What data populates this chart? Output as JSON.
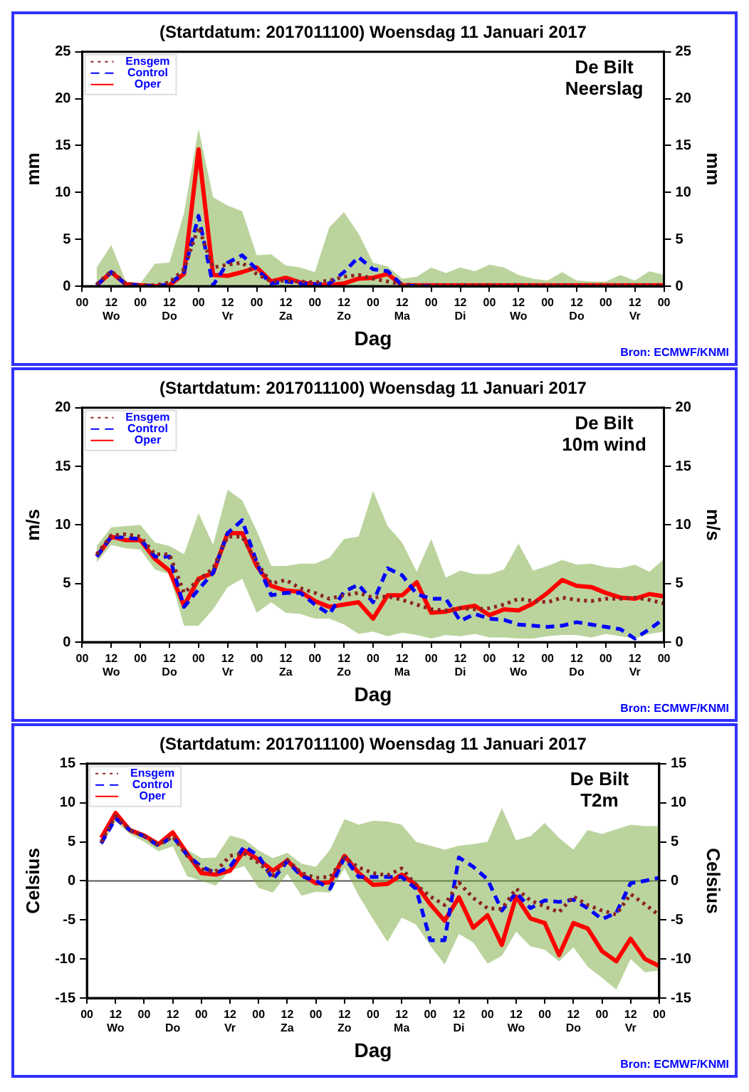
{
  "chart_data": [
    {
      "type": "line",
      "title": "(Startdatum: 2017011100) Woensdag 11 Januari 2017",
      "xlabel": "Dag",
      "ylabel": "mm",
      "y2label": "mm",
      "annotations": [
        "De Bilt",
        "Neerslag",
        "Bron: ECMWF/KNMI"
      ],
      "x": [
        "2017-01-11T06:00",
        "2017-01-11T12:00",
        "2017-01-11T18:00",
        "2017-01-12T00:00",
        "2017-01-12T06:00",
        "2017-01-12T12:00",
        "2017-01-12T18:00",
        "2017-01-13T00:00",
        "2017-01-13T06:00",
        "2017-01-13T12:00",
        "2017-01-13T18:00",
        "2017-01-14T00:00",
        "2017-01-14T06:00",
        "2017-01-14T12:00",
        "2017-01-14T18:00",
        "2017-01-15T00:00",
        "2017-01-15T06:00",
        "2017-01-15T12:00",
        "2017-01-15T18:00",
        "2017-01-16T00:00",
        "2017-01-16T06:00",
        "2017-01-16T12:00",
        "2017-01-16T18:00",
        "2017-01-17T00:00",
        "2017-01-17T06:00",
        "2017-01-17T12:00",
        "2017-01-17T18:00",
        "2017-01-18T00:00",
        "2017-01-18T06:00",
        "2017-01-18T12:00",
        "2017-01-18T18:00",
        "2017-01-19T00:00",
        "2017-01-19T06:00",
        "2017-01-19T12:00",
        "2017-01-19T18:00",
        "2017-01-20T00:00",
        "2017-01-20T06:00",
        "2017-01-20T12:00",
        "2017-01-20T18:00",
        "2017-01-21T00:00"
      ],
      "xlim": [
        "2017-01-11T00:00",
        "2017-01-21T00:00"
      ],
      "xticks": [
        {
          "value": "2017-01-11T00:00",
          "label": "00"
        },
        {
          "value": "2017-01-11T12:00",
          "label": "12\nWo"
        },
        {
          "value": "2017-01-12T00:00",
          "label": "00"
        },
        {
          "value": "2017-01-12T12:00",
          "label": "12\nDo"
        },
        {
          "value": "2017-01-13T00:00",
          "label": "00"
        },
        {
          "value": "2017-01-13T12:00",
          "label": "12\nVr"
        },
        {
          "value": "2017-01-14T00:00",
          "label": "00"
        },
        {
          "value": "2017-01-14T12:00",
          "label": "12\nZa"
        },
        {
          "value": "2017-01-15T00:00",
          "label": "00"
        },
        {
          "value": "2017-01-15T12:00",
          "label": "12\nZo"
        },
        {
          "value": "2017-01-16T00:00",
          "label": "00"
        },
        {
          "value": "2017-01-16T12:00",
          "label": "12\nMa"
        },
        {
          "value": "2017-01-17T00:00",
          "label": "00"
        },
        {
          "value": "2017-01-17T12:00",
          "label": "12\nDi"
        },
        {
          "value": "2017-01-18T00:00",
          "label": "00"
        },
        {
          "value": "2017-01-18T12:00",
          "label": "12\nWo"
        },
        {
          "value": "2017-01-19T00:00",
          "label": "00"
        },
        {
          "value": "2017-01-19T12:00",
          "label": "12\nDo"
        },
        {
          "value": "2017-01-20T00:00",
          "label": "00"
        },
        {
          "value": "2017-01-20T12:00",
          "label": "12\nVr"
        },
        {
          "value": "2017-01-21T00:00",
          "label": "00"
        }
      ],
      "ylim": [
        0,
        25
      ],
      "yticks": [
        0,
        5,
        10,
        15,
        20,
        25
      ],
      "y2lim": [
        0,
        25
      ],
      "y2ticks": [
        0,
        5,
        10,
        15,
        20,
        25
      ],
      "legend": "top left",
      "series": [
        {
          "name": "Ensgem",
          "color": "#8b2323",
          "line_style": "dotted",
          "values": [
            0.2,
            1.6,
            0.3,
            0.1,
            0.1,
            0.4,
            1.8,
            6.3,
            2.0,
            2.3,
            2.5,
            1.3,
            0.5,
            0.6,
            0.5,
            0.4,
            0.6,
            1.0,
            1.2,
            0.8,
            0.5,
            0.2,
            0.1,
            0.1,
            0.1,
            0.1,
            0.1,
            0.1,
            0.1,
            0.1,
            0.1,
            0.1,
            0.1,
            0.1,
            0.1,
            0.1,
            0.1,
            0.1,
            0.1,
            0.1
          ],
          "lower": [
            0,
            0,
            0,
            0,
            0,
            0,
            0,
            0,
            0,
            0,
            0,
            0,
            0,
            0,
            0,
            0,
            0,
            0,
            0,
            0,
            0,
            0,
            0,
            0,
            0,
            0,
            0,
            0,
            0,
            0,
            0,
            0,
            0,
            0,
            0,
            0,
            0,
            0,
            0,
            0
          ],
          "upper": [
            2,
            4.4,
            0.5,
            0.3,
            2.4,
            2.5,
            7.8,
            16.8,
            9.5,
            8.6,
            8.0,
            3.3,
            3.4,
            2.2,
            2.0,
            1.5,
            6.3,
            7.9,
            5.6,
            2.5,
            2.1,
            0.8,
            1.0,
            2.0,
            1.4,
            2.0,
            1.6,
            2.3,
            2.0,
            1.2,
            0.8,
            0.6,
            1.5,
            0.6,
            0.5,
            0.5,
            1.2,
            0.6,
            1.6,
            1.2
          ]
        },
        {
          "name": "Control",
          "color": "#0000ff",
          "line_style": "dashed",
          "values": [
            0.1,
            1.5,
            0.2,
            0.1,
            0,
            0.2,
            1.5,
            7.5,
            0.1,
            2.5,
            3.3,
            1.8,
            0.3,
            0.5,
            0.3,
            0.2,
            0.3,
            1.5,
            3.1,
            1.8,
            1.6,
            0.1,
            0,
            0,
            null,
            null,
            null,
            null,
            null,
            null,
            null,
            null,
            null,
            null,
            null,
            null,
            null,
            null,
            null,
            null
          ]
        },
        {
          "name": "Oper",
          "color": "#ff0000",
          "line_style": "solid",
          "values": [
            0.1,
            1.5,
            0.2,
            0.1,
            0,
            0.1,
            1.3,
            14.6,
            1.2,
            1.1,
            1.5,
            2.0,
            0.5,
            0.9,
            0.4,
            0.2,
            0.1,
            0.3,
            0.8,
            0.9,
            1.3,
            0.1,
            0.1,
            0.1,
            0.1,
            0.1,
            0.1,
            0.1,
            0.1,
            0.1,
            0.1,
            0.1,
            0.1,
            0.1,
            0.1,
            0.1,
            0.1,
            0.1,
            0.1,
            0.1
          ]
        }
      ]
    },
    {
      "type": "line",
      "title": "(Startdatum: 2017011100) Woensdag 11 Januari 2017",
      "xlabel": "Dag",
      "ylabel": "m/s",
      "y2label": "m/s",
      "annotations": [
        "De Bilt",
        "10m wind",
        "Bron: ECMWF/KNMI"
      ],
      "x": [
        "2017-01-11T06:00",
        "2017-01-11T12:00",
        "2017-01-11T18:00",
        "2017-01-12T00:00",
        "2017-01-12T06:00",
        "2017-01-12T12:00",
        "2017-01-12T18:00",
        "2017-01-13T00:00",
        "2017-01-13T06:00",
        "2017-01-13T12:00",
        "2017-01-13T18:00",
        "2017-01-14T00:00",
        "2017-01-14T06:00",
        "2017-01-14T12:00",
        "2017-01-14T18:00",
        "2017-01-15T00:00",
        "2017-01-15T06:00",
        "2017-01-15T12:00",
        "2017-01-15T18:00",
        "2017-01-16T00:00",
        "2017-01-16T06:00",
        "2017-01-16T12:00",
        "2017-01-16T18:00",
        "2017-01-17T00:00",
        "2017-01-17T06:00",
        "2017-01-17T12:00",
        "2017-01-17T18:00",
        "2017-01-18T00:00",
        "2017-01-18T06:00",
        "2017-01-18T12:00",
        "2017-01-18T18:00",
        "2017-01-19T00:00",
        "2017-01-19T06:00",
        "2017-01-19T12:00",
        "2017-01-19T18:00",
        "2017-01-20T00:00",
        "2017-01-20T06:00",
        "2017-01-20T12:00",
        "2017-01-20T18:00",
        "2017-01-21T00:00"
      ],
      "xlim": [
        "2017-01-11T00:00",
        "2017-01-21T00:00"
      ],
      "xticks": [
        {
          "value": "2017-01-11T00:00",
          "label": "00"
        },
        {
          "value": "2017-01-11T12:00",
          "label": "12\nWo"
        },
        {
          "value": "2017-01-12T00:00",
          "label": "00"
        },
        {
          "value": "2017-01-12T12:00",
          "label": "12\nDo"
        },
        {
          "value": "2017-01-13T00:00",
          "label": "00"
        },
        {
          "value": "2017-01-13T12:00",
          "label": "12\nVr"
        },
        {
          "value": "2017-01-14T00:00",
          "label": "00"
        },
        {
          "value": "2017-01-14T12:00",
          "label": "12\nZa"
        },
        {
          "value": "2017-01-15T00:00",
          "label": "00"
        },
        {
          "value": "2017-01-15T12:00",
          "label": "12\nZo"
        },
        {
          "value": "2017-01-16T00:00",
          "label": "00"
        },
        {
          "value": "2017-01-16T12:00",
          "label": "12\nMa"
        },
        {
          "value": "2017-01-17T00:00",
          "label": "00"
        },
        {
          "value": "2017-01-17T12:00",
          "label": "12\nDi"
        },
        {
          "value": "2017-01-18T00:00",
          "label": "00"
        },
        {
          "value": "2017-01-18T12:00",
          "label": "12\nWo"
        },
        {
          "value": "2017-01-19T00:00",
          "label": "00"
        },
        {
          "value": "2017-01-19T12:00",
          "label": "12\nDo"
        },
        {
          "value": "2017-01-20T00:00",
          "label": "00"
        },
        {
          "value": "2017-01-20T12:00",
          "label": "12\nVr"
        },
        {
          "value": "2017-01-21T00:00",
          "label": "00"
        }
      ],
      "ylim": [
        0,
        20
      ],
      "yticks": [
        0,
        5,
        10,
        15,
        20
      ],
      "y2lim": [
        0,
        20
      ],
      "y2ticks": [
        0,
        5,
        10,
        15,
        20
      ],
      "legend": "top left",
      "series": [
        {
          "name": "Ensgem",
          "color": "#8b2323",
          "line_style": "dotted",
          "values": [
            7.5,
            9.1,
            9.2,
            9.0,
            7.5,
            7.5,
            4.2,
            5.3,
            6.3,
            9.0,
            9.0,
            6.8,
            5.0,
            5.3,
            4.6,
            4.2,
            3.7,
            4.0,
            4.2,
            3.8,
            3.9,
            3.6,
            3.2,
            2.8,
            2.7,
            2.9,
            2.8,
            2.9,
            3.2,
            3.7,
            3.5,
            3.4,
            3.8,
            3.6,
            3.5,
            3.7,
            3.7,
            3.8,
            3.6,
            3.3
          ],
          "lower": [
            6.8,
            8.3,
            8.0,
            7.9,
            6.2,
            5.8,
            1.4,
            1.4,
            2.8,
            4.7,
            5.4,
            2.5,
            3.4,
            2.5,
            2.4,
            2.0,
            2.0,
            1.5,
            0.7,
            0.9,
            0.5,
            0.8,
            0.6,
            0.3,
            0.6,
            0.5,
            0.7,
            0.4,
            0.4,
            0.3,
            0.3,
            0.5,
            0.6,
            0.6,
            0.4,
            0.7,
            0.5,
            0.3,
            0.7,
            0.9
          ],
          "upper": [
            8.2,
            9.8,
            9.9,
            10.0,
            8.5,
            8.2,
            7.5,
            11.0,
            8.3,
            13.0,
            12.1,
            9.5,
            6.5,
            6.5,
            6.7,
            6.7,
            7.2,
            8.8,
            9.0,
            12.9,
            9.9,
            8.5,
            6.0,
            8.8,
            5.5,
            6.1,
            5.8,
            5.8,
            6.2,
            8.4,
            6.1,
            6.5,
            7.0,
            6.6,
            6.7,
            6.4,
            6.3,
            6.6,
            6.0,
            7.1
          ]
        },
        {
          "name": "Control",
          "color": "#0000ff",
          "line_style": "dashed",
          "values": [
            7.3,
            9.0,
            8.9,
            8.8,
            7.3,
            7.3,
            3.0,
            4.5,
            5.9,
            9.3,
            10.4,
            6.8,
            4.0,
            4.2,
            4.2,
            3.2,
            2.4,
            4.3,
            4.9,
            3.4,
            6.3,
            5.7,
            4.1,
            3.7,
            3.7,
            1.8,
            2.4,
            2.0,
            1.9,
            1.5,
            1.4,
            1.3,
            1.4,
            1.7,
            1.5,
            1.3,
            1.1,
            0.3,
            1.1,
            2.0
          ]
        },
        {
          "name": "Oper",
          "color": "#ff0000",
          "line_style": "solid",
          "values": [
            7.3,
            9.0,
            8.7,
            8.7,
            7.1,
            6.1,
            3.1,
            5.4,
            5.9,
            9.3,
            9.3,
            6.5,
            4.8,
            4.4,
            4.3,
            3.5,
            3.0,
            3.2,
            3.4,
            2.0,
            4.0,
            4.0,
            5.1,
            2.5,
            2.6,
            2.9,
            3.1,
            2.3,
            2.8,
            2.7,
            3.3,
            4.2,
            5.3,
            4.8,
            4.7,
            4.2,
            3.8,
            3.7,
            4.1,
            3.9
          ]
        }
      ]
    },
    {
      "type": "line",
      "title": "(Startdatum: 2017011100) Woensdag 11 Januari 2017",
      "xlabel": "Dag",
      "ylabel": "Celsius",
      "y2label": "Celsius",
      "annotations": [
        "De Bilt",
        "T2m",
        "Bron: ECMWF/KNMI"
      ],
      "x": [
        "2017-01-11T06:00",
        "2017-01-11T12:00",
        "2017-01-11T18:00",
        "2017-01-12T00:00",
        "2017-01-12T06:00",
        "2017-01-12T12:00",
        "2017-01-12T18:00",
        "2017-01-13T00:00",
        "2017-01-13T06:00",
        "2017-01-13T12:00",
        "2017-01-13T18:00",
        "2017-01-14T00:00",
        "2017-01-14T06:00",
        "2017-01-14T12:00",
        "2017-01-14T18:00",
        "2017-01-15T00:00",
        "2017-01-15T06:00",
        "2017-01-15T12:00",
        "2017-01-15T18:00",
        "2017-01-16T00:00",
        "2017-01-16T06:00",
        "2017-01-16T12:00",
        "2017-01-16T18:00",
        "2017-01-17T00:00",
        "2017-01-17T06:00",
        "2017-01-17T12:00",
        "2017-01-17T18:00",
        "2017-01-18T00:00",
        "2017-01-18T06:00",
        "2017-01-18T12:00",
        "2017-01-18T18:00",
        "2017-01-19T00:00",
        "2017-01-19T06:00",
        "2017-01-19T12:00",
        "2017-01-19T18:00",
        "2017-01-20T00:00",
        "2017-01-20T06:00",
        "2017-01-20T12:00",
        "2017-01-20T18:00",
        "2017-01-21T00:00"
      ],
      "xlim": [
        "2017-01-11T00:00",
        "2017-01-21T00:00"
      ],
      "xticks": [
        {
          "value": "2017-01-11T00:00",
          "label": "00"
        },
        {
          "value": "2017-01-11T12:00",
          "label": "12\nWo"
        },
        {
          "value": "2017-01-12T00:00",
          "label": "00"
        },
        {
          "value": "2017-01-12T12:00",
          "label": "12\nDo"
        },
        {
          "value": "2017-01-13T00:00",
          "label": "00"
        },
        {
          "value": "2017-01-13T12:00",
          "label": "12\nVr"
        },
        {
          "value": "2017-01-14T00:00",
          "label": "00"
        },
        {
          "value": "2017-01-14T12:00",
          "label": "12\nZa"
        },
        {
          "value": "2017-01-15T00:00",
          "label": "00"
        },
        {
          "value": "2017-01-15T12:00",
          "label": "12\nZo"
        },
        {
          "value": "2017-01-16T00:00",
          "label": "00"
        },
        {
          "value": "2017-01-16T12:00",
          "label": "12\nMa"
        },
        {
          "value": "2017-01-17T00:00",
          "label": "00"
        },
        {
          "value": "2017-01-17T12:00",
          "label": "12\nDi"
        },
        {
          "value": "2017-01-18T00:00",
          "label": "00"
        },
        {
          "value": "2017-01-18T12:00",
          "label": "12\nWo"
        },
        {
          "value": "2017-01-19T00:00",
          "label": "00"
        },
        {
          "value": "2017-01-19T12:00",
          "label": "12\nDo"
        },
        {
          "value": "2017-01-20T00:00",
          "label": "00"
        },
        {
          "value": "2017-01-20T12:00",
          "label": "12\nVr"
        },
        {
          "value": "2017-01-21T00:00",
          "label": "00"
        }
      ],
      "ylim": [
        -15,
        15
      ],
      "yticks": [
        -15,
        -10,
        -5,
        0,
        5,
        10,
        15
      ],
      "y2lim": [
        -15,
        15
      ],
      "y2ticks": [
        -15,
        -10,
        -5,
        0,
        5,
        10,
        15
      ],
      "legend": "top left",
      "ref_lines": [
        {
          "axis": "y",
          "value": 0,
          "color": "#555555"
        }
      ],
      "series": [
        {
          "name": "Ensgem",
          "color": "#8b2323",
          "line_style": "dotted",
          "values": [
            5.0,
            8.3,
            6.5,
            5.7,
            4.6,
            5.7,
            3.2,
            1.5,
            1.2,
            3.2,
            3.5,
            2.3,
            0.7,
            2.7,
            1.0,
            0.4,
            0.5,
            3.0,
            1.7,
            1.0,
            0.7,
            1.6,
            -0.5,
            -2.0,
            -3.1,
            -0.2,
            -2.2,
            -3.5,
            -3.6,
            -1.0,
            -2.5,
            -3.3,
            -4.0,
            -2.0,
            -3.1,
            -3.8,
            -4.3,
            -1.7,
            -3.0,
            -4.4
          ],
          "lower": [
            4.4,
            7.6,
            6.0,
            5.0,
            3.8,
            4.4,
            0.6,
            0.0,
            -0.6,
            1.3,
            1.9,
            -0.9,
            -1.5,
            0.9,
            -1.9,
            -1.4,
            -1.5,
            1.6,
            -1.9,
            -4.9,
            -7.8,
            -4.7,
            -5.6,
            -8.3,
            -10.7,
            -6.8,
            -7.9,
            -10.6,
            -9.6,
            -6.5,
            -8.4,
            -8.8,
            -10.3,
            -8.5,
            -11.0,
            -12.4,
            -13.9,
            -10.0,
            -11.7,
            -11.5
          ],
          "upper": [
            5.7,
            8.9,
            6.8,
            6.1,
            5.0,
            6.6,
            4.0,
            2.9,
            3.0,
            5.8,
            5.3,
            3.9,
            2.9,
            3.6,
            2.2,
            1.8,
            4.0,
            7.9,
            7.2,
            7.7,
            7.6,
            7.2,
            5.0,
            4.5,
            4.0,
            4.5,
            4.7,
            5.0,
            9.3,
            5.2,
            5.7,
            7.4,
            5.5,
            4.0,
            6.5,
            6.0,
            6.6,
            7.2,
            7.0,
            7.0
          ]
        },
        {
          "name": "Control",
          "color": "#0000ff",
          "line_style": "dashed",
          "values": [
            4.8,
            8.0,
            6.5,
            5.7,
            4.5,
            5.7,
            3.3,
            1.8,
            1.0,
            1.8,
            4.4,
            3.2,
            0.2,
            2.5,
            0.6,
            0.0,
            -1.0,
            3.0,
            0.5,
            0.5,
            0.5,
            0.5,
            -1.0,
            -7.6,
            -7.6,
            3.0,
            1.8,
            0.2,
            -3.8,
            -1.5,
            -3.5,
            -2.5,
            -2.7,
            -2.4,
            -3.5,
            -4.9,
            -4.1,
            -0.3,
            0.0,
            0.4
          ]
        },
        {
          "name": "Oper",
          "color": "#ff0000",
          "line_style": "solid",
          "values": [
            5.5,
            8.7,
            6.5,
            5.8,
            4.7,
            6.2,
            3.5,
            1.0,
            0.8,
            1.3,
            3.9,
            2.7,
            1.3,
            2.6,
            0.8,
            -0.3,
            -0.2,
            3.2,
            1.0,
            -0.5,
            -0.4,
            0.8,
            -0.5,
            -3.0,
            -5.1,
            -2.1,
            -6.0,
            -4.4,
            -8.2,
            -2.0,
            -4.8,
            -5.4,
            -9.5,
            -5.4,
            -6.1,
            -9.0,
            -10.3,
            -7.4,
            -10.0,
            -10.9
          ]
        }
      ]
    }
  ]
}
